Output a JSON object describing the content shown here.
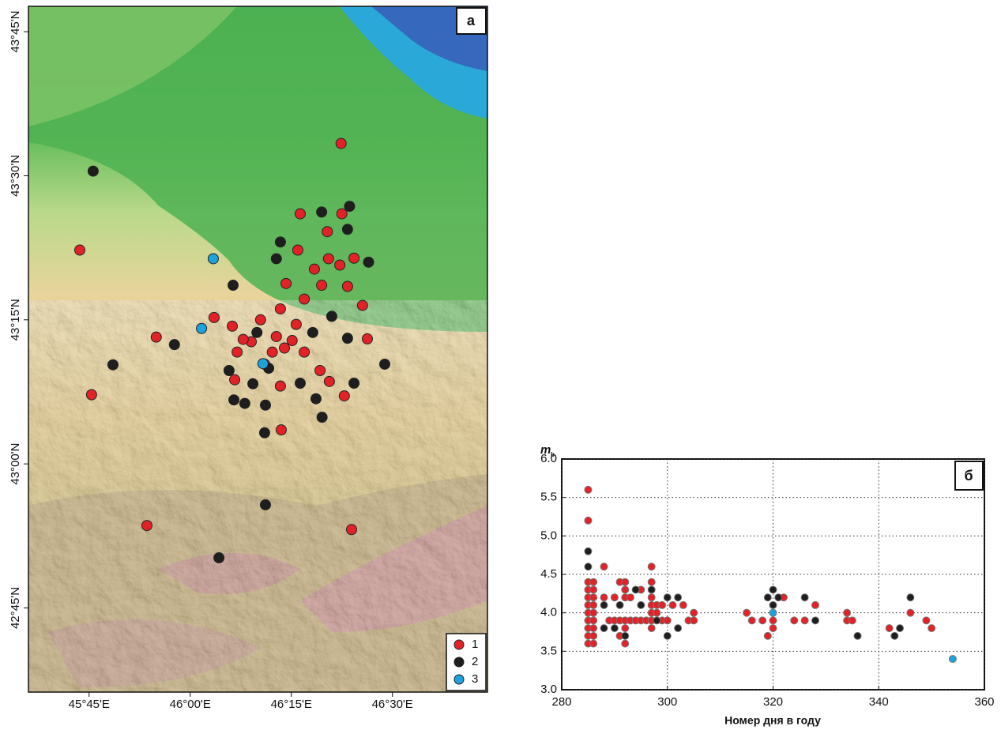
{
  "chart_data": [
    {
      "type": "map",
      "label": "а",
      "xlim": [
        45.6,
        46.735
      ],
      "ylim": [
        42.604,
        43.794
      ],
      "xticks": [
        {
          "value": 45.75,
          "label": "45°45'E"
        },
        {
          "value": 46.0,
          "label": "46°00'E"
        },
        {
          "value": 46.25,
          "label": "46°15'E"
        },
        {
          "value": 46.5,
          "label": "46°30'E"
        }
      ],
      "yticks": [
        {
          "value": 42.75,
          "label": "42°45'N"
        },
        {
          "value": 43.0,
          "label": "43°00'N"
        },
        {
          "value": 43.25,
          "label": "43°15'N"
        },
        {
          "value": 43.5,
          "label": "43°30'N"
        },
        {
          "value": 43.75,
          "label": "43°45'N"
        }
      ],
      "legend": "lower right",
      "series": [
        {
          "name": "1",
          "color": "#e32228",
          "x": [
            46.373,
            45.727,
            45.756,
            45.893,
            46.399,
            45.916,
            46.225,
            46.438,
            46.426,
            46.272,
            46.375,
            46.339,
            46.266,
            46.342,
            46.307,
            46.237,
            46.325,
            46.282,
            46.223,
            46.174,
            46.262,
            46.213,
            46.151,
            46.233,
            46.282,
            46.116,
            46.184,
            46.321,
            46.11,
            46.223,
            46.344,
            46.381,
            46.059,
            46.104,
            46.37,
            46.405,
            46.389,
            46.131,
            46.203,
            46.252
          ],
          "values": [
            43.556,
            43.371,
            43.12,
            42.893,
            42.886,
            43.22,
            43.059,
            43.217,
            43.275,
            43.434,
            43.434,
            43.403,
            43.371,
            43.356,
            43.338,
            43.313,
            43.31,
            43.286,
            43.269,
            43.25,
            43.242,
            43.221,
            43.212,
            43.201,
            43.194,
            43.194,
            43.173,
            43.162,
            43.146,
            43.135,
            43.143,
            43.118,
            43.254,
            43.239,
            43.345,
            43.357,
            43.308,
            43.216,
            43.194,
            43.214
          ]
        },
        {
          "name": "2",
          "color": "#1e1e1e",
          "x": [
            45.76,
            45.809,
            45.961,
            46.071,
            46.186,
            46.184,
            46.481,
            46.326,
            46.106,
            46.223,
            46.325,
            46.394,
            46.441,
            46.389,
            46.186,
            46.135,
            46.108,
            46.272,
            46.311,
            46.405,
            46.096,
            46.155,
            46.213,
            46.389,
            46.35,
            46.194,
            46.165,
            46.303
          ],
          "values": [
            43.508,
            43.172,
            43.207,
            42.837,
            42.929,
            43.054,
            43.173,
            43.081,
            43.31,
            43.385,
            43.437,
            43.447,
            43.35,
            43.218,
            43.102,
            43.105,
            43.111,
            43.14,
            43.113,
            43.14,
            43.162,
            43.139,
            43.356,
            43.407,
            43.256,
            43.166,
            43.228,
            43.228
          ]
        },
        {
          "name": "3",
          "color": "#1ca3dc",
          "x": [
            46.028,
            46.057,
            46.18
          ],
          "values": [
            43.235,
            43.356,
            43.174
          ]
        }
      ]
    },
    {
      "type": "scatter",
      "label": "б",
      "xlabel": "Номер дня в году",
      "ylabel": "m",
      "ylabel_sub": "b",
      "xlim": [
        280,
        360
      ],
      "ylim": [
        3.0,
        6.0
      ],
      "xticks": [
        280,
        300,
        320,
        340,
        360
      ],
      "yticks": [
        {
          "value": 3.0,
          "label": "3.0"
        },
        3.5,
        {
          "value": 4.0,
          "label": "4.0"
        },
        4.5,
        {
          "value": 5.0,
          "label": "5.0"
        },
        5.5,
        {
          "value": 6.0,
          "label": "6.0"
        }
      ],
      "grid": true,
      "series": [
        {
          "name": "1",
          "color": "#e32228",
          "x": [
            285,
            285,
            285,
            285,
            285,
            285,
            285,
            285,
            285,
            285,
            285,
            286,
            286,
            286,
            286,
            286,
            286,
            286,
            286,
            286,
            288,
            288,
            289,
            290,
            290,
            291,
            291,
            291,
            292,
            292,
            292,
            292,
            292,
            292,
            293,
            293,
            294,
            295,
            295,
            296,
            297,
            297,
            297,
            297,
            297,
            297,
            297,
            298,
            298,
            299,
            299,
            300,
            301,
            303,
            304,
            305,
            305,
            315,
            316,
            318,
            319,
            320,
            320,
            322,
            324,
            326,
            328,
            334,
            334,
            335,
            342,
            346,
            349,
            350
          ],
          "values": [
            5.6,
            5.2,
            4.4,
            4.3,
            4.2,
            4.1,
            4.0,
            3.9,
            3.8,
            3.7,
            3.6,
            4.4,
            4.3,
            4.2,
            4.1,
            4.0,
            3.9,
            3.8,
            3.7,
            3.6,
            4.6,
            4.2,
            3.9,
            4.2,
            3.9,
            4.4,
            3.9,
            3.7,
            4.4,
            4.3,
            4.2,
            3.9,
            3.8,
            3.6,
            4.2,
            3.9,
            3.9,
            4.3,
            3.9,
            3.9,
            4.6,
            4.4,
            4.2,
            4.1,
            4.0,
            3.9,
            3.8,
            4.1,
            4.0,
            4.1,
            3.9,
            3.9,
            4.1,
            4.1,
            3.9,
            4.0,
            3.9,
            4.0,
            3.9,
            3.9,
            3.7,
            3.8,
            3.9,
            4.2,
            3.9,
            3.9,
            4.1,
            4.0,
            3.9,
            3.9,
            3.8,
            4.0,
            3.9,
            3.8
          ]
        },
        {
          "name": "2",
          "color": "#1e1e1e",
          "x": [
            285,
            285,
            288,
            288,
            290,
            291,
            292,
            294,
            295,
            297,
            298,
            300,
            300,
            302,
            302,
            319,
            320,
            320,
            321,
            326,
            328,
            336,
            343,
            344,
            346
          ],
          "values": [
            4.8,
            4.6,
            4.1,
            3.8,
            3.8,
            4.1,
            3.7,
            4.3,
            4.1,
            4.3,
            3.9,
            4.2,
            3.7,
            4.2,
            3.8,
            4.2,
            4.3,
            4.1,
            4.2,
            4.2,
            3.9,
            3.7,
            3.7,
            3.8,
            4.2
          ]
        },
        {
          "name": "3",
          "color": "#1ca3dc",
          "x": [
            320,
            354
          ],
          "values": [
            4.0,
            3.4
          ]
        }
      ]
    }
  ]
}
